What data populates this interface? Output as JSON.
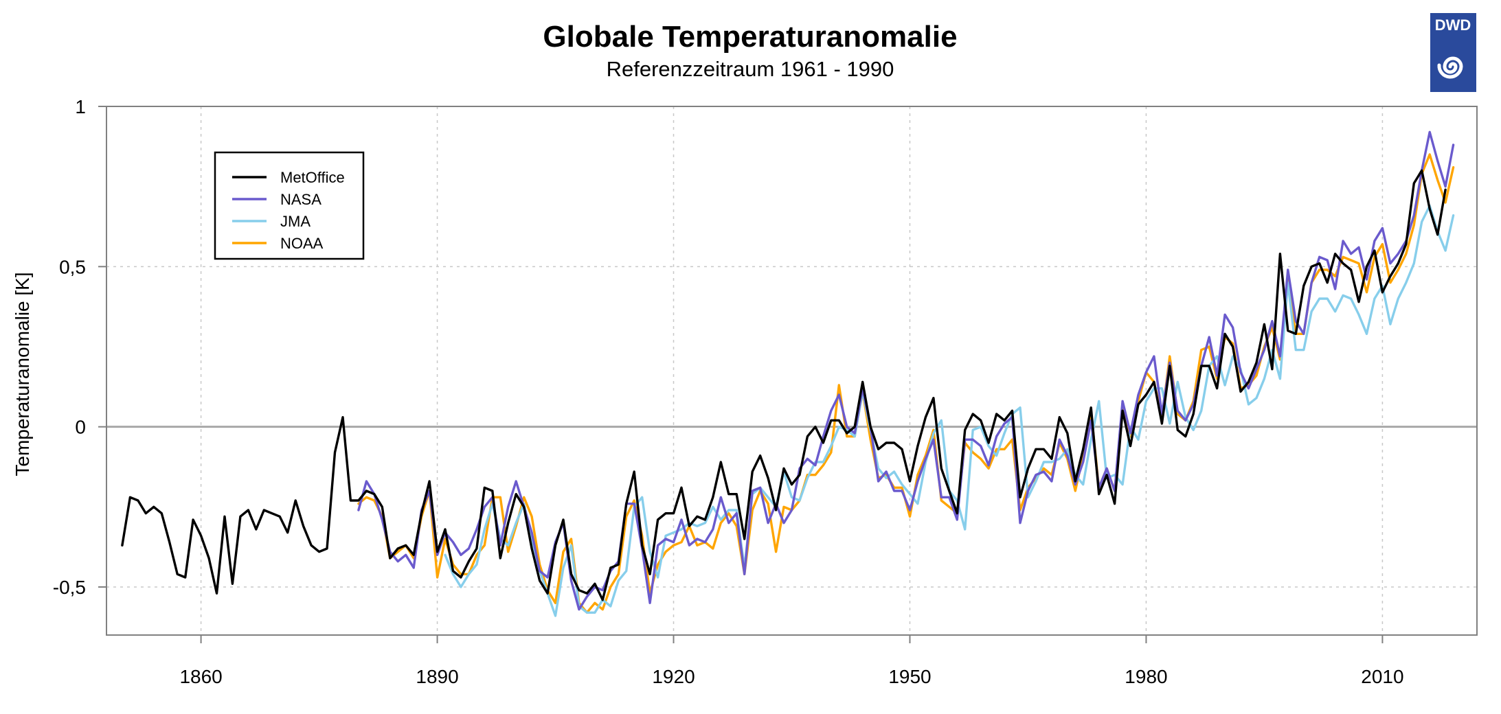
{
  "chart_data": {
    "type": "line",
    "title": "Globale Temperaturanomalie",
    "subtitle": "Referenzzeitraum 1961 - 1990",
    "ylabel": "Temperaturanomalie [K]",
    "xlabel": "",
    "xlim": [
      1848,
      2022
    ],
    "ylim": [
      -0.65,
      1.0
    ],
    "xticks": [
      1860,
      1890,
      1920,
      1950,
      1980,
      2010
    ],
    "yticks": [
      {
        "value": -0.5,
        "label": "-0,5"
      },
      {
        "value": 0,
        "label": "0"
      },
      {
        "value": 0.5,
        "label": "0,5"
      },
      {
        "value": 1,
        "label": "1"
      }
    ],
    "grid": true,
    "zero_line": true,
    "legend_position": "top-left",
    "legend": [
      {
        "name": "MetOffice",
        "color": "#000000"
      },
      {
        "name": "NASA",
        "color": "#6A5ACD"
      },
      {
        "name": "JMA",
        "color": "#87CEEB"
      },
      {
        "name": "NOAA",
        "color": "#FFA500"
      }
    ],
    "series": [
      {
        "name": "NOAA",
        "color": "#FFA500",
        "start": 1880,
        "values": [
          -0.24,
          -0.22,
          -0.23,
          -0.28,
          -0.41,
          -0.39,
          -0.37,
          -0.41,
          -0.28,
          -0.2,
          -0.47,
          -0.35,
          -0.43,
          -0.46,
          -0.46,
          -0.4,
          -0.37,
          -0.22,
          -0.22,
          -0.39,
          -0.31,
          -0.22,
          -0.28,
          -0.43,
          -0.51,
          -0.55,
          -0.39,
          -0.35,
          -0.55,
          -0.58,
          -0.55,
          -0.57,
          -0.5,
          -0.46,
          -0.28,
          -0.23,
          -0.34,
          -0.52,
          -0.43,
          -0.39,
          -0.37,
          -0.36,
          -0.31,
          -0.37,
          -0.36,
          -0.38,
          -0.3,
          -0.27,
          -0.31,
          -0.46,
          -0.26,
          -0.2,
          -0.24,
          -0.39,
          -0.25,
          -0.26,
          -0.23,
          -0.15,
          -0.15,
          -0.12,
          -0.08,
          0.13,
          -0.03,
          -0.03,
          0.11,
          -0.04,
          -0.16,
          -0.15,
          -0.19,
          -0.19,
          -0.28,
          -0.15,
          -0.09,
          -0.01,
          -0.23,
          -0.25,
          -0.27,
          -0.05,
          -0.08,
          -0.1,
          -0.13,
          -0.07,
          -0.07,
          -0.04,
          -0.26,
          -0.19,
          -0.16,
          -0.13,
          -0.15,
          -0.05,
          -0.1,
          -0.2,
          -0.09,
          0.05,
          -0.19,
          -0.13,
          -0.2,
          0.07,
          -0.03,
          0.08,
          0.17,
          0.14,
          0.03,
          0.22,
          0.04,
          0.02,
          0.08,
          0.24,
          0.25,
          0.15,
          0.28,
          0.26,
          0.12,
          0.13,
          0.16,
          0.25,
          0.31,
          0.21,
          0.46,
          0.29,
          0.29,
          0.45,
          0.49,
          0.49,
          0.47,
          0.53,
          0.52,
          0.51,
          0.42,
          0.53,
          0.57,
          0.45,
          0.49,
          0.54,
          0.63,
          0.79,
          0.85,
          0.77,
          0.7,
          0.81
        ]
      },
      {
        "name": "JMA",
        "color": "#87CEEB",
        "start": 1891,
        "values": [
          -0.4,
          -0.46,
          -0.5,
          -0.46,
          -0.43,
          -0.32,
          -0.24,
          -0.35,
          -0.37,
          -0.3,
          -0.24,
          -0.35,
          -0.45,
          -0.52,
          -0.59,
          -0.44,
          -0.37,
          -0.56,
          -0.58,
          -0.58,
          -0.54,
          -0.56,
          -0.48,
          -0.45,
          -0.25,
          -0.22,
          -0.39,
          -0.47,
          -0.34,
          -0.33,
          -0.32,
          -0.3,
          -0.31,
          -0.3,
          -0.25,
          -0.29,
          -0.26,
          -0.26,
          -0.44,
          -0.21,
          -0.19,
          -0.22,
          -0.25,
          -0.14,
          -0.22,
          -0.23,
          -0.16,
          -0.11,
          -0.11,
          -0.06,
          0.0,
          -0.01,
          -0.03,
          0.11,
          -0.01,
          -0.13,
          -0.16,
          -0.14,
          -0.18,
          -0.21,
          -0.24,
          -0.11,
          -0.02,
          0.02,
          -0.2,
          -0.23,
          -0.32,
          -0.01,
          0.0,
          -0.06,
          -0.09,
          -0.02,
          0.04,
          0.06,
          -0.22,
          -0.17,
          -0.11,
          -0.11,
          -0.1,
          -0.07,
          -0.15,
          -0.18,
          -0.04,
          0.08,
          -0.16,
          -0.15,
          -0.18,
          0.0,
          -0.04,
          0.08,
          0.12,
          0.12,
          0.01,
          0.14,
          0.03,
          -0.01,
          0.05,
          0.19,
          0.22,
          0.13,
          0.22,
          0.18,
          0.07,
          0.09,
          0.15,
          0.24,
          0.15,
          0.45,
          0.24,
          0.24,
          0.36,
          0.4,
          0.4,
          0.36,
          0.41,
          0.4,
          0.35,
          0.29,
          0.4,
          0.44,
          0.32,
          0.4,
          0.45,
          0.51,
          0.64,
          0.69,
          0.61,
          0.55,
          0.66
        ]
      },
      {
        "name": "NASA",
        "color": "#6A5ACD",
        "start": 1880,
        "values": [
          -0.26,
          -0.17,
          -0.21,
          -0.29,
          -0.39,
          -0.42,
          -0.4,
          -0.44,
          -0.26,
          -0.2,
          -0.4,
          -0.33,
          -0.36,
          -0.4,
          -0.38,
          -0.32,
          -0.25,
          -0.22,
          -0.37,
          -0.25,
          -0.17,
          -0.25,
          -0.33,
          -0.45,
          -0.47,
          -0.36,
          -0.3,
          -0.48,
          -0.57,
          -0.53,
          -0.5,
          -0.51,
          -0.45,
          -0.42,
          -0.24,
          -0.24,
          -0.38,
          -0.55,
          -0.37,
          -0.35,
          -0.36,
          -0.29,
          -0.37,
          -0.35,
          -0.36,
          -0.32,
          -0.22,
          -0.3,
          -0.27,
          -0.46,
          -0.2,
          -0.19,
          -0.3,
          -0.24,
          -0.3,
          -0.26,
          -0.13,
          -0.1,
          -0.12,
          -0.03,
          0.05,
          0.1,
          0.0,
          -0.02,
          0.12,
          0.0,
          -0.17,
          -0.14,
          -0.2,
          -0.2,
          -0.26,
          -0.17,
          -0.1,
          -0.04,
          -0.22,
          -0.22,
          -0.29,
          -0.04,
          -0.04,
          -0.06,
          -0.12,
          -0.03,
          0.01,
          0.03,
          -0.3,
          -0.2,
          -0.15,
          -0.14,
          -0.17,
          -0.04,
          -0.09,
          -0.18,
          -0.11,
          0.02,
          -0.19,
          -0.13,
          -0.2,
          0.08,
          -0.02,
          0.1,
          0.17,
          0.22,
          0.04,
          0.2,
          0.05,
          0.02,
          0.07,
          0.19,
          0.28,
          0.16,
          0.35,
          0.31,
          0.17,
          0.12,
          0.18,
          0.24,
          0.33,
          0.22,
          0.49,
          0.33,
          0.29,
          0.45,
          0.53,
          0.52,
          0.43,
          0.58,
          0.54,
          0.56,
          0.46,
          0.58,
          0.62,
          0.51,
          0.54,
          0.58,
          0.66,
          0.8,
          0.92,
          0.83,
          0.75,
          0.88
        ]
      },
      {
        "name": "MetOffice",
        "color": "#000000",
        "start": 1850,
        "values": [
          -0.37,
          -0.22,
          -0.23,
          -0.27,
          -0.25,
          -0.27,
          -0.36,
          -0.46,
          -0.47,
          -0.29,
          -0.34,
          -0.41,
          -0.52,
          -0.28,
          -0.49,
          -0.28,
          -0.26,
          -0.32,
          -0.26,
          -0.27,
          -0.28,
          -0.33,
          -0.23,
          -0.31,
          -0.37,
          -0.39,
          -0.38,
          -0.08,
          0.03,
          -0.23,
          -0.23,
          -0.2,
          -0.21,
          -0.25,
          -0.41,
          -0.38,
          -0.37,
          -0.4,
          -0.27,
          -0.17,
          -0.39,
          -0.32,
          -0.45,
          -0.47,
          -0.42,
          -0.38,
          -0.19,
          -0.2,
          -0.41,
          -0.3,
          -0.21,
          -0.25,
          -0.38,
          -0.48,
          -0.52,
          -0.37,
          -0.29,
          -0.46,
          -0.51,
          -0.52,
          -0.49,
          -0.54,
          -0.44,
          -0.43,
          -0.24,
          -0.14,
          -0.37,
          -0.46,
          -0.29,
          -0.27,
          -0.27,
          -0.19,
          -0.31,
          -0.28,
          -0.29,
          -0.22,
          -0.11,
          -0.21,
          -0.21,
          -0.35,
          -0.14,
          -0.09,
          -0.16,
          -0.26,
          -0.13,
          -0.18,
          -0.15,
          -0.03,
          0.0,
          -0.05,
          0.02,
          0.02,
          -0.02,
          0.0,
          0.14,
          0.0,
          -0.07,
          -0.05,
          -0.05,
          -0.07,
          -0.17,
          -0.06,
          0.03,
          0.09,
          -0.13,
          -0.2,
          -0.27,
          -0.01,
          0.04,
          0.02,
          -0.05,
          0.04,
          0.02,
          0.05,
          -0.22,
          -0.13,
          -0.07,
          -0.07,
          -0.1,
          0.03,
          -0.02,
          -0.17,
          -0.07,
          0.06,
          -0.21,
          -0.15,
          -0.24,
          0.05,
          -0.06,
          0.07,
          0.1,
          0.14,
          0.01,
          0.19,
          -0.01,
          -0.03,
          0.04,
          0.19,
          0.19,
          0.12,
          0.29,
          0.25,
          0.11,
          0.14,
          0.2,
          0.32,
          0.18,
          0.54,
          0.3,
          0.29,
          0.44,
          0.5,
          0.51,
          0.45,
          0.54,
          0.51,
          0.49,
          0.39,
          0.5,
          0.55,
          0.42,
          0.47,
          0.51,
          0.57,
          0.76,
          0.8,
          0.68,
          0.6,
          0.74
        ]
      }
    ]
  },
  "logo": {
    "text": "DWD",
    "background": "#2a4a9c"
  }
}
